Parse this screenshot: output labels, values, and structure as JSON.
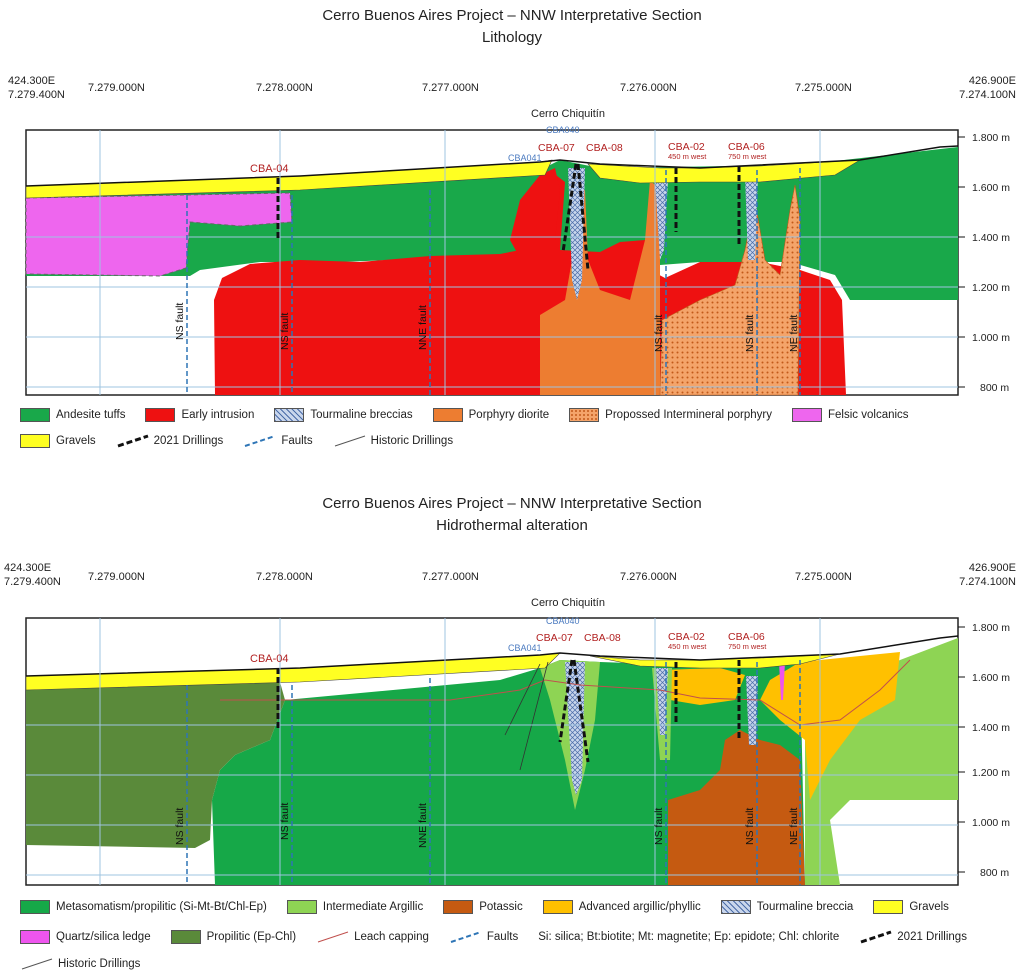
{
  "colors": {
    "andesite": "#19a84a",
    "early_intrusion": "#ee1111",
    "tourmaline": "#c9d6ec",
    "porphyry_diorite": "#ed7d31",
    "interminerals": "#f4a46a",
    "felsic": "#ee66ee",
    "gravels": "#ffff22",
    "metasomatism": "#16a848",
    "intermediate": "#8ed454",
    "potassic": "#c55a11",
    "advanced": "#ffc000",
    "quartz": "#ee55ee",
    "propilitic": "#5a8a3a",
    "leach": "#c0504d",
    "fault": "#2e75b6",
    "grid": "#9fc4e0"
  },
  "sections": [
    {
      "title_line1": "Cerro Buenos Aires Project – NNW Interpretative Section",
      "title_line2": "Lithology",
      "coords": {
        "left_e": "424.300E",
        "left_n": "7.279.400N",
        "n1": "7.279.000N",
        "n2": "7.278.000N",
        "n3": "7.277.000N",
        "n4": "7.276.000N",
        "n5": "7.275.000N",
        "right_e": "426.900E",
        "right_n": "7.274.100N"
      },
      "place": "Cerro Chiquitín",
      "elevations": [
        "1.800 m",
        "1.600 m",
        "1.400 m",
        "1.200 m",
        "1.000 m",
        "800 m"
      ],
      "drills": {
        "cba04": "CBA-04",
        "cba040": "CBA040",
        "cba041": "CBA041",
        "cba07": "CBA-07",
        "cba08": "CBA-08",
        "cba02": "CBA-02",
        "cba02_sub": "450 m west",
        "cba06": "CBA-06",
        "cba06_sub": "750 m west"
      },
      "faults": [
        "NS fault",
        "NS fault",
        "NNE fault",
        "NS fault",
        "NS fault",
        "NE fault"
      ],
      "legend": {
        "andesite": "Andesite tuffs",
        "early": "Early intrusion",
        "tourmaline": "Tourmaline breccias",
        "porphyry": "Porphyry diorite",
        "propossed": "Propossed Intermineral porphyry",
        "felsic": "Felsic volcanics",
        "gravels": "Gravels",
        "drillings": "2021 Drillings",
        "faults": "Faults",
        "historic": "Historic Drillings"
      }
    },
    {
      "title_line1": "Cerro Buenos Aires Project – NNW Interpretative Section",
      "title_line2": "Hidrothermal alteration",
      "coords": {
        "left_e": "424.300E",
        "left_n": "7.279.400N",
        "n1": "7.279.000N",
        "n2": "7.278.000N",
        "n3": "7.277.000N",
        "n4": "7.276.000N",
        "n5": "7.275.000N",
        "right_e": "426.900E",
        "right_n": "7.274.100N"
      },
      "place": "Cerro Chiquitín",
      "elevations": [
        "1.800 m",
        "1.600 m",
        "1.400 m",
        "1.200 m",
        "1.000 m",
        "800 m"
      ],
      "drills": {
        "cba04": "CBA-04",
        "cba040": "CBA040",
        "cba041": "CBA041",
        "cba07": "CBA-07",
        "cba08": "CBA-08",
        "cba02": "CBA-02",
        "cba02_sub": "450 m west",
        "cba06": "CBA-06",
        "cba06_sub": "750 m west"
      },
      "faults": [
        "NS fault",
        "NS fault",
        "NNE fault",
        "NS fault",
        "NS fault",
        "NE fault"
      ],
      "legend": {
        "metasomatism": "Metasomatism/propilitic (Si-Mt-Bt/Chl-Ep)",
        "intermediate": "Intermediate Argillic",
        "potassic": "Potassic",
        "advanced": "Advanced argillic/phyllic",
        "tourmaline": "Tourmaline breccia",
        "gravels": "Gravels",
        "quartz": "Quartz/silica ledge",
        "propilitic": "Propilitic (Ep-Chl)",
        "leach": "Leach capping",
        "faults": "Faults",
        "abbrev": "Si: silica; Bt:biotite; Mt: magnetite; Ep: epidote; Chl: chlorite",
        "drillings": "2021 Drillings",
        "historic": "Historic Drillings"
      }
    }
  ]
}
